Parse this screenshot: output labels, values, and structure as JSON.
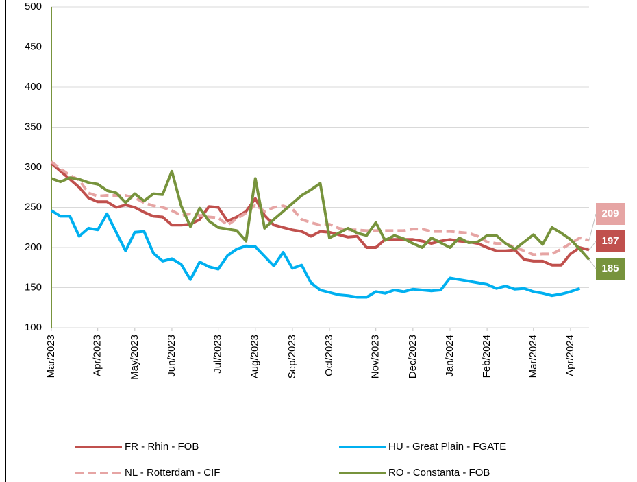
{
  "chart_data": {
    "type": "line",
    "categories": [
      "Mar/2023",
      null,
      null,
      null,
      null,
      "Apr/2023",
      null,
      null,
      null,
      "May/2023",
      null,
      null,
      null,
      "Jun/2023",
      null,
      null,
      null,
      null,
      "Jul/2023",
      null,
      null,
      null,
      "Aug/2023",
      null,
      null,
      null,
      "Sep/2023",
      null,
      null,
      null,
      "Oct/2023",
      null,
      null,
      null,
      null,
      "Nov/2023",
      null,
      null,
      null,
      "Dec/2023",
      null,
      null,
      null,
      "Jan/2024",
      null,
      null,
      null,
      "Feb/2024",
      null,
      null,
      null,
      null,
      "Mar/2024",
      null,
      null,
      null,
      "Apr/2024",
      null,
      null
    ],
    "series": [
      {
        "name": "FR - Rhin - FOB",
        "color": "#c0504d",
        "dashed": false,
        "values": [
          305,
          295,
          285,
          275,
          262,
          257,
          257,
          250,
          253,
          250,
          244,
          239,
          238,
          228,
          228,
          229,
          235,
          251,
          250,
          233,
          238,
          245,
          261,
          240,
          228,
          225,
          222,
          220,
          214,
          220,
          219,
          216,
          213,
          214,
          200,
          200,
          210,
          210,
          210,
          210,
          208,
          205,
          208,
          210,
          208,
          207,
          205,
          200,
          196,
          196,
          197,
          185,
          183,
          183,
          178,
          178,
          192,
          200,
          197
        ]
      },
      {
        "name": "HU - Great Plain - FGATE",
        "color": "#00b0f0",
        "dashed": false,
        "values": [
          246,
          239,
          239,
          214,
          224,
          222,
          242,
          219,
          196,
          219,
          220,
          193,
          183,
          186,
          179,
          160,
          182,
          176,
          173,
          190,
          198,
          202,
          201,
          189,
          177,
          194,
          174,
          178,
          156,
          147,
          144,
          141,
          140,
          138,
          138,
          145,
          143,
          147,
          145,
          148,
          147,
          146,
          147,
          162,
          160,
          158,
          156,
          154,
          149,
          152,
          148,
          149,
          145,
          143,
          140,
          142,
          145,
          149,
          null
        ]
      },
      {
        "name": "NL - Rotterdam - CIF",
        "color": "#e6a5a4",
        "dashed": true,
        "values": [
          307,
          298,
          290,
          284,
          268,
          264,
          265,
          265,
          265,
          262,
          256,
          252,
          250,
          246,
          240,
          242,
          240,
          238,
          237,
          228,
          236,
          243,
          253,
          245,
          250,
          252,
          248,
          235,
          231,
          228,
          229,
          224,
          222,
          222,
          221,
          221,
          221,
          221,
          221,
          223,
          223,
          220,
          220,
          220,
          219,
          218,
          214,
          207,
          205,
          205,
          200,
          196,
          191,
          192,
          192,
          198,
          205,
          212,
          209
        ]
      },
      {
        "name": "RO - Constanta - FOB",
        "color": "#77933c",
        "dashed": false,
        "values": [
          286,
          282,
          287,
          285,
          281,
          279,
          271,
          268,
          256,
          267,
          258,
          267,
          266,
          295,
          252,
          226,
          249,
          233,
          225,
          223,
          221,
          208,
          286,
          224,
          235,
          245,
          255,
          265,
          272,
          280,
          212,
          218,
          224,
          218,
          215,
          231,
          209,
          215,
          211,
          205,
          200,
          212,
          206,
          200,
          212,
          206,
          207,
          215,
          215,
          205,
          198,
          207,
          216,
          204,
          225,
          218,
          210,
          198,
          185
        ]
      }
    ],
    "end_labels": [
      2,
      0,
      3
    ],
    "ylim": [
      100,
      500
    ],
    "yticks": [
      100,
      150,
      200,
      250,
      300,
      350,
      400,
      450,
      500
    ],
    "grid": true
  }
}
